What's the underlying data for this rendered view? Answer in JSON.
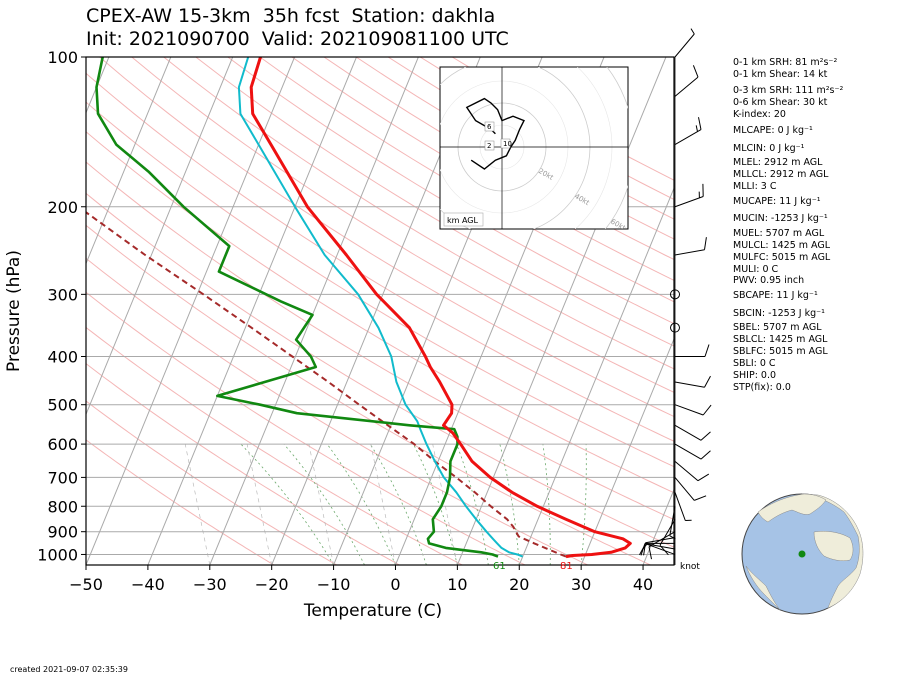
{
  "title_line1": "CPEX-AW 15-3km  35h fcst  Station: dakhla",
  "title_line2": "Init: 2021090700  Valid: 202109081100 UTC",
  "footer_created": "created 2021-09-07 02:35:39",
  "indices": [
    {
      "text": "0-1 km SRH: 81 m²s⁻²"
    },
    {
      "text": "0-1 km Shear: 14 kt"
    },
    {
      "text": "0-3 km SRH: 111 m²s⁻²"
    },
    {
      "text": "0-6 km Shear: 30 kt"
    },
    {
      "text": "K-index: 20"
    },
    {
      "text": "MLCAPE: 0 J kg⁻¹"
    },
    {
      "text": "MLCIN: 0 J kg⁻¹"
    },
    {
      "text": "MLEL: 2912 m AGL"
    },
    {
      "text": "MLLCL: 2912 m AGL"
    },
    {
      "text": "MLLI: 3 C"
    },
    {
      "text": "MUCAPE: 11 J kg⁻¹"
    },
    {
      "text": "MUCIN: -1253 J kg⁻¹"
    },
    {
      "text": "MUEL: 5707 m AGL"
    },
    {
      "text": "MULCL: 1425 m AGL"
    },
    {
      "text": "MULFC: 5015 m AGL"
    },
    {
      "text": "MULI: 0 C"
    },
    {
      "text": "PWV: 0.95 inch"
    },
    {
      "text": "SBCAPE: 11 J kg⁻¹"
    },
    {
      "text": "SBCIN: -1253 J kg⁻¹"
    },
    {
      "text": "SBEL: 5707 m AGL"
    },
    {
      "text": "SBLCL: 1425 m AGL"
    },
    {
      "text": "SBLFC: 5015 m AGL"
    },
    {
      "text": "SBLI: 0 C"
    },
    {
      "text": "SHIP: 0.0"
    },
    {
      "text": "STP(fix): 0.0"
    }
  ],
  "colors": {
    "temperature": "#ee1111",
    "dewpoint": "#118811",
    "wetbulb": "#11bbcc",
    "parcel": "#a52a2a",
    "dry_adiabat": "#f4b6b6",
    "moist_adiabat": "#6aa86a",
    "grid": "#aaaaaa",
    "globe_ocean": "#a6c3e6",
    "globe_land": "#efedda",
    "station_marker": "#118811"
  },
  "chart_data": {
    "type": "skew-t",
    "xlabel": "Temperature (C)",
    "ylabel": "Pressure (hPa)",
    "xlim": [
      -50,
      45
    ],
    "ylim": [
      1050,
      100
    ],
    "xticks": [
      "−50",
      "−40",
      "−30",
      "−20",
      "−10",
      "0",
      "10",
      "20",
      "30",
      "40"
    ],
    "xtick_values": [
      -50,
      -40,
      -30,
      -20,
      -10,
      0,
      10,
      20,
      30,
      40
    ],
    "yticks": [
      "100",
      "200",
      "300",
      "400",
      "500",
      "600",
      "700",
      "800",
      "900",
      "1000"
    ],
    "ytick_values": [
      100,
      200,
      300,
      400,
      500,
      600,
      700,
      800,
      900,
      1000
    ],
    "skew_deg_per_decade": 33,
    "temperature_profile": [
      [
        1010,
        27.0
      ],
      [
        1005,
        28.0
      ],
      [
        1000,
        31.0
      ],
      [
        990,
        34.0
      ],
      [
        970,
        36.0
      ],
      [
        950,
        36.5
      ],
      [
        930,
        35.0
      ],
      [
        900,
        30.0
      ],
      [
        850,
        24.5
      ],
      [
        800,
        19.0
      ],
      [
        750,
        14.0
      ],
      [
        700,
        9.5
      ],
      [
        650,
        5.5
      ],
      [
        600,
        2.5
      ],
      [
        570,
        0.5
      ],
      [
        550,
        -1.5
      ],
      [
        520,
        -1.0
      ],
      [
        500,
        -1.5
      ],
      [
        450,
        -5.0
      ],
      [
        420,
        -7.5
      ],
      [
        400,
        -9.0
      ],
      [
        350,
        -13.5
      ],
      [
        300,
        -21.0
      ],
      [
        250,
        -28.5
      ],
      [
        200,
        -38.0
      ],
      [
        150,
        -48.0
      ],
      [
        130,
        -53.0
      ],
      [
        115,
        -55.0
      ],
      [
        100,
        -55.5
      ]
    ],
    "dewpoint_profile": [
      [
        1010,
        16.0
      ],
      [
        1000,
        15.0
      ],
      [
        990,
        13.0
      ],
      [
        970,
        7.0
      ],
      [
        950,
        4.0
      ],
      [
        930,
        3.5
      ],
      [
        900,
        4.0
      ],
      [
        850,
        3.0
      ],
      [
        800,
        3.5
      ],
      [
        750,
        3.5
      ],
      [
        700,
        3.0
      ],
      [
        650,
        2.0
      ],
      [
        600,
        2.0
      ],
      [
        580,
        1.5
      ],
      [
        560,
        0.5
      ],
      [
        550,
        -7.0
      ],
      [
        520,
        -26.0
      ],
      [
        500,
        -32.5
      ],
      [
        480,
        -40.0
      ],
      [
        420,
        -26.0
      ],
      [
        400,
        -27.5
      ],
      [
        370,
        -31.0
      ],
      [
        330,
        -30.0
      ],
      [
        310,
        -36.0
      ],
      [
        270,
        -48.0
      ],
      [
        240,
        -48.0
      ],
      [
        200,
        -58.0
      ],
      [
        170,
        -66.0
      ],
      [
        150,
        -73.0
      ],
      [
        130,
        -78.0
      ],
      [
        115,
        -80.0
      ],
      [
        100,
        -81.0
      ]
    ],
    "wetbulb_profile": [
      [
        1010,
        20.0
      ],
      [
        1000,
        19.0
      ],
      [
        990,
        17.5
      ],
      [
        970,
        16.0
      ],
      [
        950,
        15.0
      ],
      [
        930,
        14.0
      ],
      [
        900,
        12.5
      ],
      [
        850,
        10.0
      ],
      [
        800,
        7.5
      ],
      [
        750,
        5.0
      ],
      [
        700,
        2.0
      ],
      [
        650,
        -0.5
      ],
      [
        600,
        -3.0
      ],
      [
        560,
        -5.0
      ],
      [
        540,
        -6.0
      ],
      [
        500,
        -9.0
      ],
      [
        450,
        -12.0
      ],
      [
        400,
        -14.5
      ],
      [
        350,
        -18.5
      ],
      [
        300,
        -24.0
      ],
      [
        250,
        -32.0
      ],
      [
        200,
        -40.0
      ],
      [
        150,
        -50.0
      ],
      [
        130,
        -55.0
      ],
      [
        115,
        -57.0
      ],
      [
        100,
        -57.5
      ]
    ],
    "parcel_profile": [
      [
        1010,
        27.0
      ],
      [
        1000,
        26.0
      ],
      [
        950,
        21.0
      ],
      [
        920,
        18.0
      ],
      [
        880,
        16.5
      ],
      [
        850,
        15.0
      ],
      [
        800,
        11.5
      ],
      [
        750,
        8.0
      ],
      [
        700,
        4.0
      ],
      [
        650,
        -0.5
      ],
      [
        600,
        -5.0
      ],
      [
        550,
        -10.5
      ],
      [
        500,
        -16.5
      ],
      [
        450,
        -23.0
      ],
      [
        400,
        -30.5
      ],
      [
        350,
        -39.0
      ],
      [
        300,
        -49.0
      ],
      [
        250,
        -61.0
      ],
      [
        200,
        -75.0
      ],
      [
        150,
        -92.0
      ],
      [
        100,
        -115.0
      ]
    ],
    "surface_labels": {
      "dewpoint": "61",
      "temperature": "81"
    },
    "wind_unit_label": "knot",
    "wind_barbs": [
      [
        1000,
        5,
        250
      ],
      [
        975,
        8,
        260
      ],
      [
        950,
        10,
        270
      ],
      [
        925,
        12,
        280
      ],
      [
        900,
        10,
        300
      ],
      [
        850,
        8,
        330
      ],
      [
        800,
        5,
        350
      ],
      [
        750,
        6,
        20
      ],
      [
        700,
        8,
        40
      ],
      [
        650,
        10,
        50
      ],
      [
        600,
        12,
        60
      ],
      [
        550,
        12,
        60
      ],
      [
        500,
        10,
        70
      ],
      [
        450,
        8,
        80
      ],
      [
        400,
        10,
        90
      ],
      [
        350,
        0,
        0
      ],
      [
        300,
        0,
        0
      ],
      [
        250,
        12,
        100
      ],
      [
        200,
        15,
        110
      ],
      [
        150,
        15,
        120
      ],
      [
        120,
        10,
        130
      ],
      [
        100,
        5,
        140
      ]
    ],
    "hodograph": {
      "axis_title": "km AGL",
      "ring_labels": [
        "20kt",
        "40kt",
        "60kt",
        "80kt"
      ],
      "ring_values": [
        20,
        40,
        60,
        80
      ],
      "height_labels": [
        "6",
        "2",
        "10"
      ],
      "trace": [
        [
          -3,
          6
        ],
        [
          -5,
          8
        ],
        [
          -12,
          12
        ],
        [
          -16,
          18
        ],
        [
          -8,
          22
        ],
        [
          -5,
          20
        ],
        [
          -2,
          17
        ],
        [
          0,
          12
        ],
        [
          5,
          14
        ],
        [
          10,
          12
        ],
        [
          8,
          8
        ],
        [
          6,
          3
        ],
        [
          4,
          0
        ],
        [
          2,
          -4
        ],
        [
          -3,
          -6
        ],
        [
          -8,
          -10
        ],
        [
          -14,
          -6
        ]
      ]
    }
  }
}
